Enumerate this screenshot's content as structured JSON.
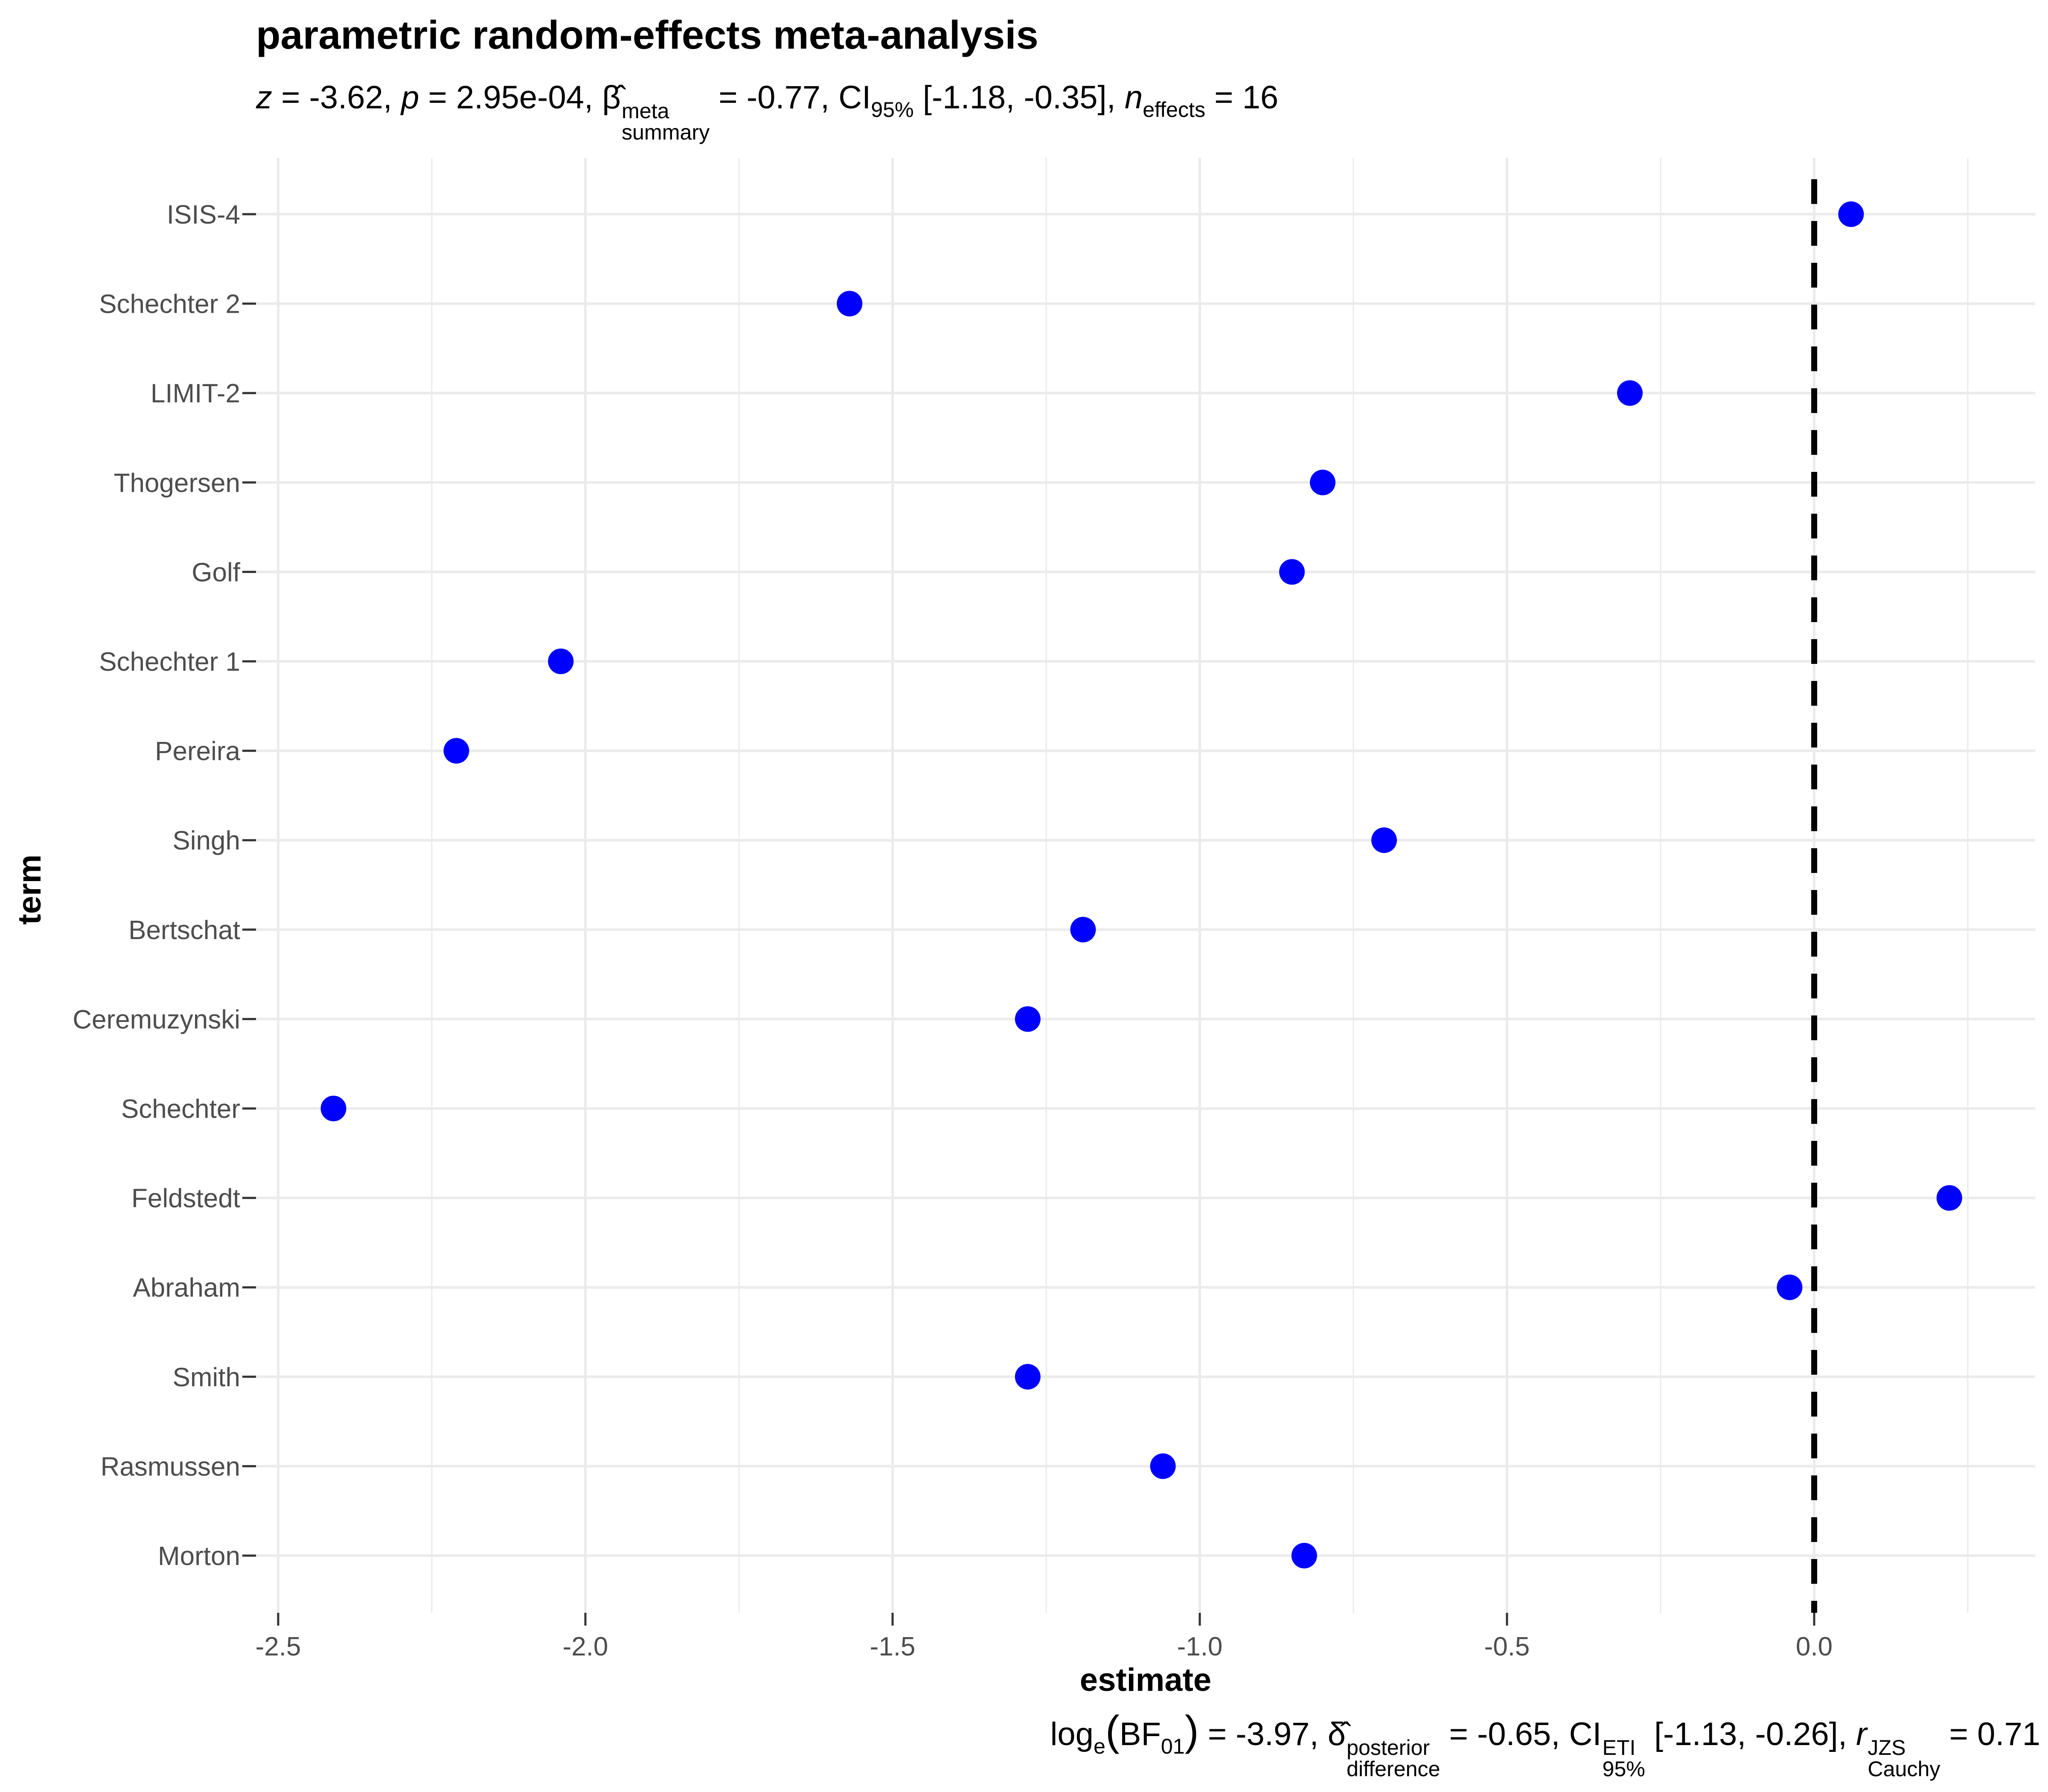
{
  "title": "parametric random-effects meta-analysis",
  "subtitle": {
    "z_label": "z",
    "z_value": " = -3.62, ",
    "p_label": "p",
    "p_value": " = 2.95e-04, ",
    "beta_symbol": "β̂",
    "beta_sup": "meta",
    "beta_sub": "summary",
    "beta_value": " = -0.77, ",
    "ci_label": "CI",
    "ci_sub": "95%",
    "ci_value": " [-1.18, -0.35], ",
    "n_label": "n",
    "n_sub": "effects",
    "n_value": " = 16"
  },
  "caption": {
    "log_label": "log",
    "log_sub": "e",
    "bf_open": "(",
    "bf_label": "BF",
    "bf_sub": "01",
    "bf_close": ")",
    "bf_value": " = -3.97, ",
    "delta_symbol": "δ̂",
    "delta_sup": "posterior",
    "delta_sub": "difference",
    "delta_value": " = -0.65, ",
    "ci_label": "CI",
    "ci_sup": "ETI",
    "ci_sub": "95%",
    "ci_value": " [-1.13, -0.26], ",
    "r_label": "r",
    "r_sup": "JZS",
    "r_sub": "Cauchy",
    "r_value": " = 0.71"
  },
  "chart_data": {
    "type": "scatter",
    "xlabel": "estimate",
    "ylabel": "term",
    "xlim": [
      -2.5,
      0.25
    ],
    "x_ticks": [
      "-2.5",
      "-2.0",
      "-1.5",
      "-1.0",
      "-0.5",
      "0.0"
    ],
    "x_tick_values": [
      -2.5,
      -2.0,
      -1.5,
      -1.0,
      -0.5,
      0.0
    ],
    "reference_line": 0.0,
    "grid": true,
    "point_color": "#0000FF",
    "terms": [
      "ISIS-4",
      "Schechter 2",
      "LIMIT-2",
      "Thogersen",
      "Golf",
      "Schechter 1",
      "Pereira",
      "Singh",
      "Bertschat",
      "Ceremuzynski",
      "Schechter",
      "Feldstedt",
      "Abraham",
      "Smith",
      "Rasmussen",
      "Morton"
    ],
    "estimates": [
      0.06,
      -1.57,
      -0.3,
      -0.8,
      -0.85,
      -2.04,
      -2.21,
      -0.7,
      -1.19,
      -1.28,
      -2.41,
      0.22,
      -0.04,
      -1.28,
      -1.06,
      -0.83
    ]
  }
}
